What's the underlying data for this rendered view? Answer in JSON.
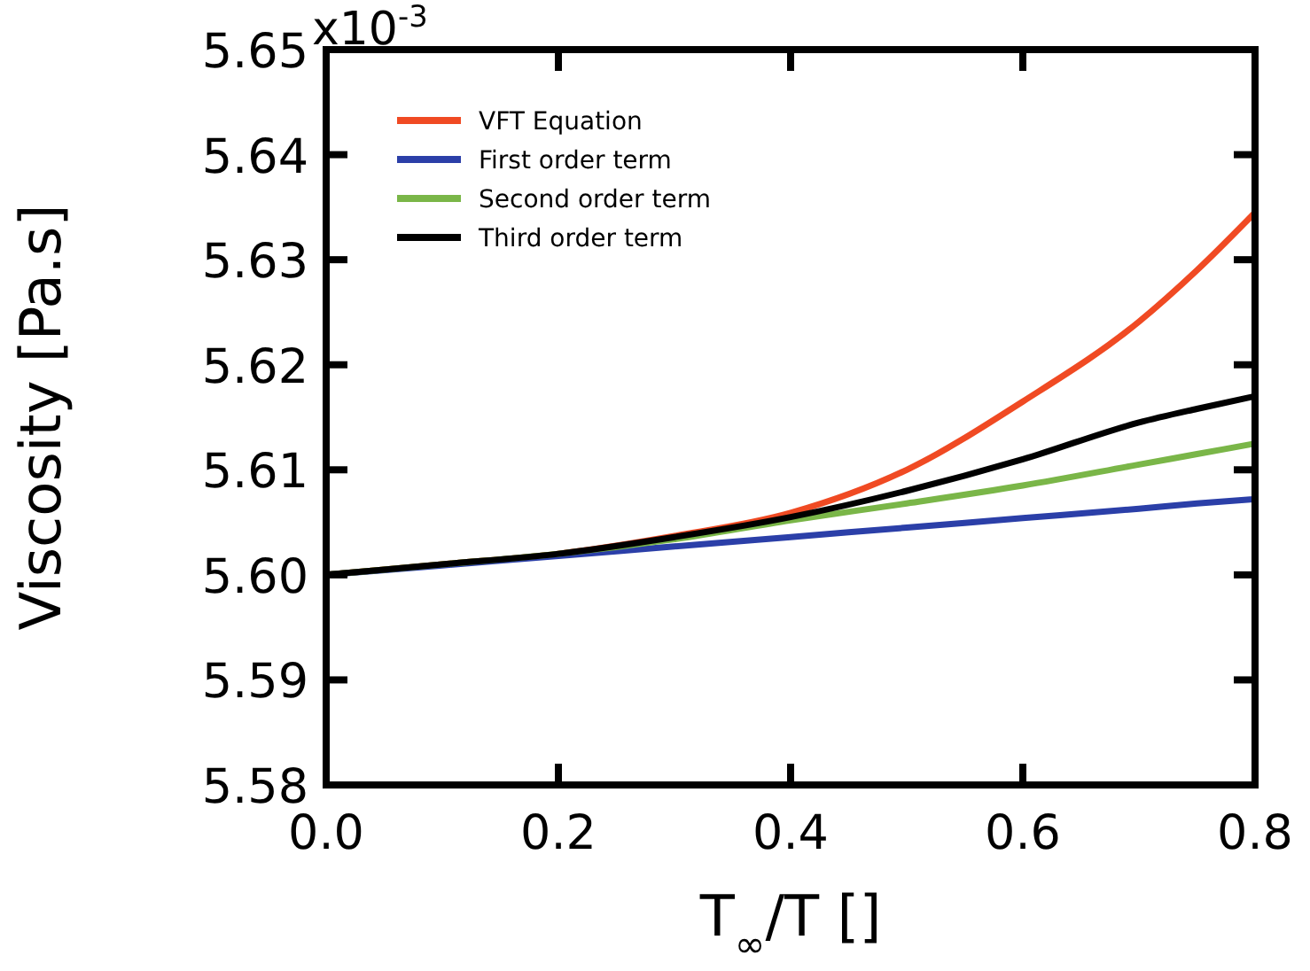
{
  "chart_data": {
    "type": "line",
    "xlabel": "T$_{∞}$/T []",
    "ylabel": "Viscosity [Pa.s]",
    "x": [
      0,
      0.1,
      0.2,
      0.3,
      0.4,
      0.5,
      0.6,
      0.7,
      0.75,
      0.8
    ],
    "series": [
      {
        "name": "VFT Equation",
        "color": "#f04a23",
        "values": [
          5.6,
          5.601,
          5.602,
          5.6037,
          5.6059,
          5.61,
          5.6165,
          5.6241,
          5.629,
          5.6345
        ]
      },
      {
        "name": "First order term",
        "color": "#2b3fa8",
        "values": [
          5.6,
          5.6009,
          5.6018,
          5.6027,
          5.6036,
          5.6045,
          5.6054,
          5.6063,
          5.6068,
          5.6072
        ]
      },
      {
        "name": "Second order term",
        "color": "#7ab648",
        "values": [
          5.6,
          5.601,
          5.602,
          5.6034,
          5.6052,
          5.6068,
          5.6085,
          5.6105,
          5.6115,
          5.6125
        ]
      },
      {
        "name": "Third order term",
        "color": "#000000",
        "values": [
          5.6,
          5.601,
          5.602,
          5.6036,
          5.6055,
          5.608,
          5.611,
          5.6145,
          5.6158,
          5.617
        ]
      }
    ],
    "xlim": [
      0,
      0.8
    ],
    "xticks": [
      {
        "value": 0,
        "label": "0.0"
      },
      0.2,
      0.4,
      0.6,
      0.8
    ],
    "ylim": [
      5.58,
      5.65
    ],
    "yticks": [
      5.58,
      5.59,
      {
        "value": 5.6,
        "label": "5.60"
      },
      5.61,
      5.62,
      5.63,
      5.64,
      5.65
    ],
    "annotations": [
      "x10$^{-3}$"
    ],
    "legend": "top left",
    "grid": false,
    "marker": "none",
    "line_style": "solid"
  }
}
